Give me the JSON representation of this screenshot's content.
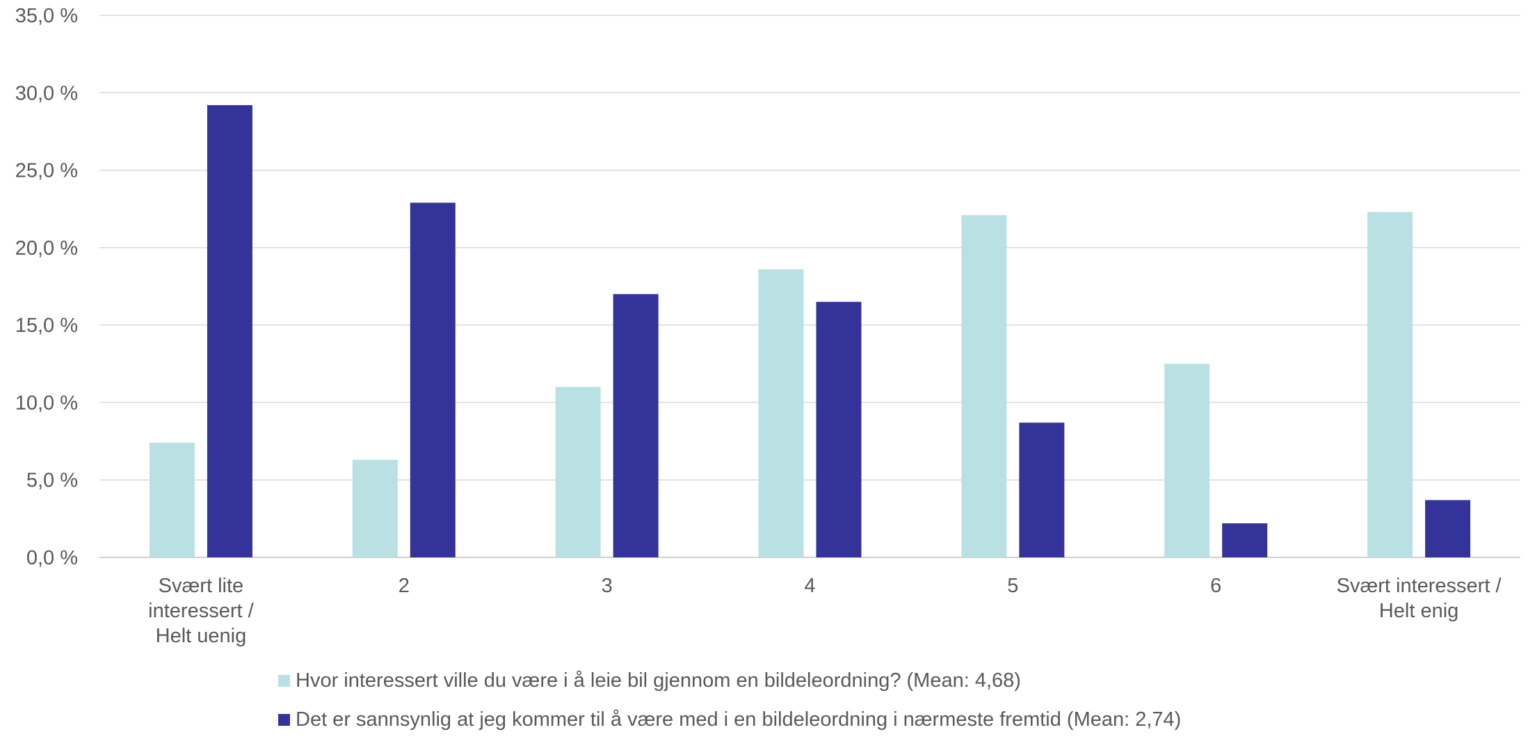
{
  "chart_data": {
    "type": "bar",
    "categories": [
      [
        "Svært lite",
        "interessert /",
        "Helt uenig"
      ],
      [
        "2"
      ],
      [
        "3"
      ],
      [
        "4"
      ],
      [
        "5"
      ],
      [
        "6"
      ],
      [
        "Svært interessert /",
        "Helt enig"
      ]
    ],
    "series": [
      {
        "name": "Hvor interessert ville du være i å leie bil gjennom en bildeleordning? (Mean: 4,68)",
        "color": "#b9e0e3",
        "values": [
          7.4,
          6.3,
          11.0,
          18.6,
          22.1,
          12.5,
          22.3
        ]
      },
      {
        "name": "Det er sannsynlig at jeg kommer til å være med i en bildeleordning i nærmeste fremtid (Mean: 2,74)",
        "color": "#333399",
        "values": [
          29.2,
          22.9,
          17.0,
          16.5,
          8.7,
          2.2,
          3.7
        ]
      }
    ],
    "y_ticks": [
      "0,0 %",
      "5,0 %",
      "10,0 %",
      "15,0 %",
      "20,0 %",
      "25,0 %",
      "30,0 %",
      "35,0 %"
    ],
    "ylim": [
      0,
      35
    ],
    "grid": true,
    "gridline_color": "#d9d9d9",
    "legend_position": "bottom"
  }
}
